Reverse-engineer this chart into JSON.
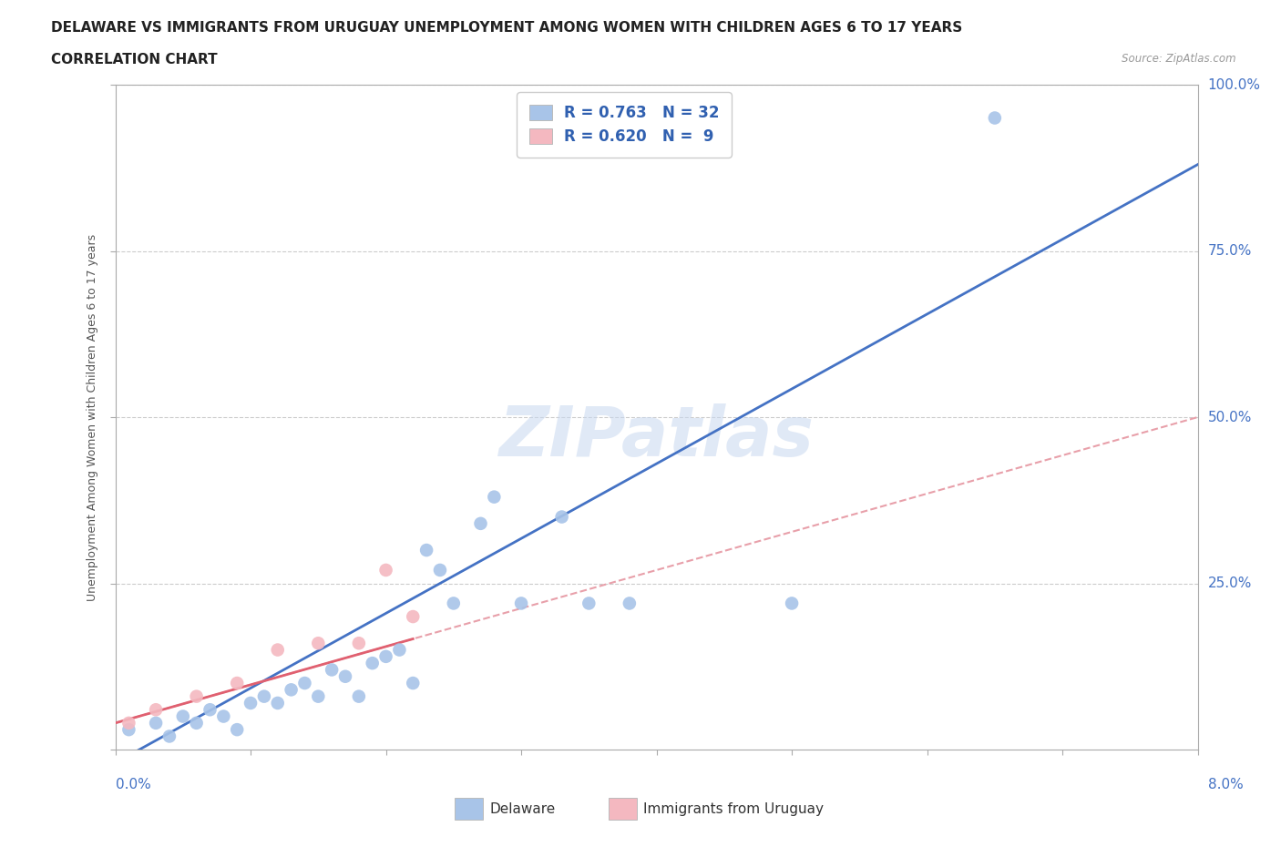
{
  "title_line1": "DELAWARE VS IMMIGRANTS FROM URUGUAY UNEMPLOYMENT AMONG WOMEN WITH CHILDREN AGES 6 TO 17 YEARS",
  "title_line2": "CORRELATION CHART",
  "source": "Source: ZipAtlas.com",
  "ylabel_label": "Unemployment Among Women with Children Ages 6 to 17 years",
  "watermark": "ZIPatlas",
  "blue_color": "#a8c4e8",
  "pink_color": "#f4b8c0",
  "blue_line_color": "#4472c4",
  "pink_line_color": "#e06070",
  "pink_dash_color": "#e8a0aa",
  "delaware_x": [
    0.001,
    0.003,
    0.004,
    0.005,
    0.006,
    0.007,
    0.008,
    0.009,
    0.01,
    0.011,
    0.012,
    0.013,
    0.014,
    0.015,
    0.016,
    0.017,
    0.018,
    0.019,
    0.02,
    0.021,
    0.022,
    0.023,
    0.024,
    0.025,
    0.027,
    0.028,
    0.03,
    0.033,
    0.035,
    0.038,
    0.05,
    0.065
  ],
  "delaware_y": [
    0.03,
    0.04,
    0.02,
    0.05,
    0.04,
    0.06,
    0.05,
    0.03,
    0.07,
    0.08,
    0.07,
    0.09,
    0.1,
    0.08,
    0.12,
    0.11,
    0.08,
    0.13,
    0.14,
    0.15,
    0.1,
    0.3,
    0.27,
    0.22,
    0.34,
    0.38,
    0.22,
    0.35,
    0.22,
    0.22,
    0.22,
    0.95
  ],
  "uruguay_x": [
    0.001,
    0.003,
    0.006,
    0.009,
    0.012,
    0.015,
    0.018,
    0.02,
    0.022
  ],
  "uruguay_y": [
    0.04,
    0.06,
    0.08,
    0.1,
    0.15,
    0.16,
    0.16,
    0.27,
    0.2
  ],
  "del_trend_x0": 0.0,
  "del_trend_y0": -0.02,
  "del_trend_x1": 0.08,
  "del_trend_y1": 0.88,
  "uru_trend_x0": 0.0,
  "uru_trend_y0": 0.04,
  "uru_trend_x1": 0.08,
  "uru_trend_y1": 0.5,
  "xmin": 0.0,
  "xmax": 0.08,
  "ymin": 0.0,
  "ymax": 1.0,
  "ytick_positions": [
    0.25,
    0.5,
    0.75,
    1.0
  ],
  "ytick_labels": [
    "25.0%",
    "50.0%",
    "75.0%",
    "100.0%"
  ],
  "grid_color": "#cccccc",
  "legend_R1": "0.763",
  "legend_N1": "32",
  "legend_R2": "0.620",
  "legend_N2": " 9",
  "bottom_label1": "Delaware",
  "bottom_label2": "Immigrants from Uruguay"
}
